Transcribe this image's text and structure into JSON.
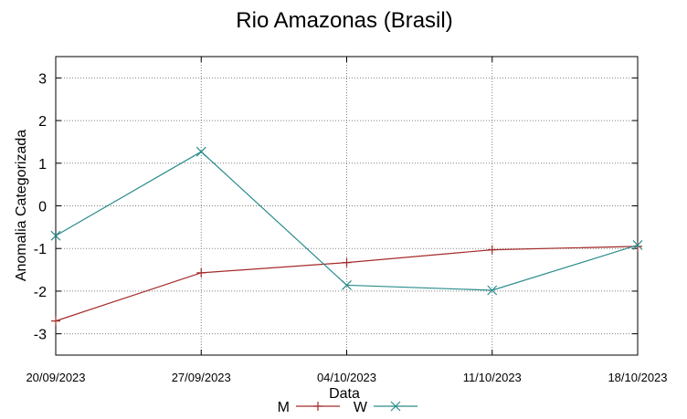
{
  "chart_data": {
    "type": "line",
    "title": "Rio Amazonas (Brasil)",
    "xlabel": "Data",
    "ylabel": "Anomalia Categorizada",
    "categories": [
      "20/09/2023",
      "27/09/2023",
      "04/10/2023",
      "11/10/2023",
      "18/10/2023"
    ],
    "ylim": [
      -3.5,
      3.5
    ],
    "yticks": [
      "3",
      "2",
      "1",
      "0",
      "-1",
      "-2",
      "-3"
    ],
    "grid": true,
    "legend_position": "bottom-center",
    "series": [
      {
        "name": "M",
        "color": "#a52a2a",
        "marker": "plus",
        "values": [
          -2.7,
          -1.57,
          -1.33,
          -1.03,
          -0.95
        ]
      },
      {
        "name": "W",
        "color": "#2a8c8c",
        "marker": "cross",
        "values": [
          -0.7,
          1.27,
          -1.86,
          -1.98,
          -0.92
        ]
      }
    ]
  }
}
